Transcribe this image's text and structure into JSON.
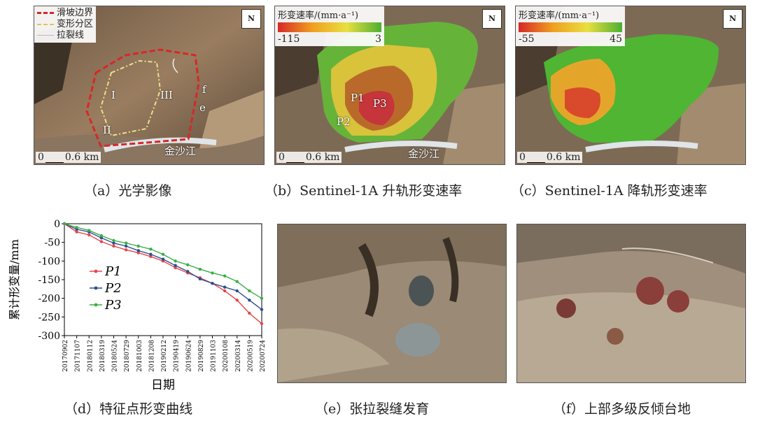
{
  "panel_a": {
    "legend": [
      "滑坡边界",
      "变形分区",
      "拉裂线"
    ],
    "zones": [
      "I",
      "II",
      "III"
    ],
    "points": [
      "f",
      "e"
    ],
    "river": "金沙江",
    "scale": {
      "zero": "0",
      "dist": "0.6 km"
    },
    "north": "N",
    "caption": "（a）光学影像"
  },
  "panel_b": {
    "colorbar_title": "形变速率/(mm·a⁻¹)",
    "cb_min": "-115",
    "cb_max": "3",
    "points": [
      "P1",
      "P2",
      "P3"
    ],
    "river": "金沙江",
    "scale": {
      "zero": "0",
      "dist": "0.6 km"
    },
    "north": "N",
    "caption": "（b）Sentinel-1A 升轨形变速率"
  },
  "panel_c": {
    "colorbar_title": "形变速率/(mm·a⁻¹)",
    "cb_min": "-55",
    "cb_max": "45",
    "scale": {
      "zero": "0",
      "dist": "0.6 km"
    },
    "north": "N",
    "caption": "（c）Sentinel-1A 降轨形变速率"
  },
  "panel_e": {
    "caption": "（e）张拉裂缝发育"
  },
  "panel_f": {
    "caption": "（f）上部多级反倾台地"
  },
  "chart_caption": "（d）特征点形变曲线",
  "colors": {
    "P1": "#e8454a",
    "P2": "#2b4f8f",
    "P3": "#3cae49",
    "boundary": "#d62828",
    "zone": "#e9e08a"
  },
  "chart_data": {
    "type": "line",
    "ylabel": "累计形变量/mm",
    "xlabel": "日期",
    "ylim": [
      -300,
      0
    ],
    "yticks": [
      0,
      -50,
      -100,
      -150,
      -200,
      -250,
      -300
    ],
    "x": [
      "20170902",
      "20171107",
      "20180112",
      "20180319",
      "20180524",
      "20180729",
      "20181003",
      "20181208",
      "20190212",
      "20190419",
      "20190624",
      "20190829",
      "20191103",
      "20200108",
      "20200314",
      "20200519",
      "20200724"
    ],
    "series": [
      {
        "name": "P1",
        "values": [
          0,
          -22,
          -30,
          -48,
          -60,
          -70,
          -78,
          -88,
          -100,
          -118,
          -132,
          -145,
          -160,
          -180,
          -205,
          -240,
          -268
        ]
      },
      {
        "name": "P2",
        "values": [
          0,
          -15,
          -22,
          -38,
          -52,
          -60,
          -72,
          -82,
          -95,
          -112,
          -128,
          -148,
          -160,
          -170,
          -180,
          -205,
          -230
        ]
      },
      {
        "name": "P3",
        "values": [
          0,
          -10,
          -18,
          -32,
          -45,
          -52,
          -60,
          -68,
          -82,
          -100,
          -110,
          -122,
          -132,
          -140,
          -155,
          -180,
          -200
        ]
      }
    ],
    "legend_position": "left-middle"
  }
}
